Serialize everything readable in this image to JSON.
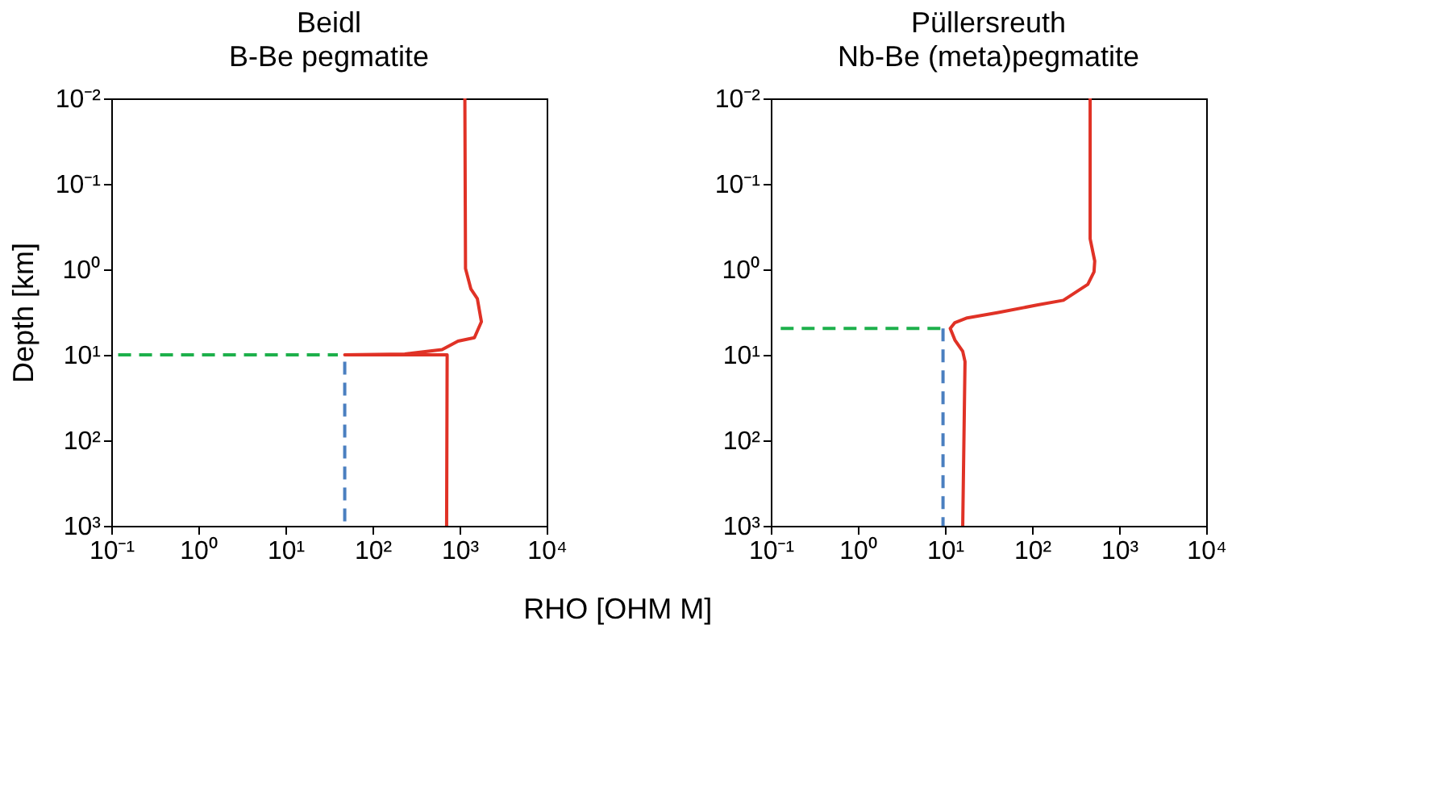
{
  "chart_data": [
    {
      "type": "line",
      "title": "Beidl",
      "subtitle": "B-Be pegmatite",
      "xlabel": "RHO [OHM M]",
      "ylabel": "Depth [km]",
      "log": "xy",
      "grid": false,
      "xlim": [
        0.1,
        10000
      ],
      "xticks": [
        {
          "value": 0.1,
          "label": "10⁻¹"
        },
        {
          "value": 1,
          "label": "10⁰"
        },
        {
          "value": 10,
          "label": "10¹"
        },
        {
          "value": 100,
          "label": "10²"
        },
        {
          "value": 1000,
          "label": "10³"
        },
        {
          "value": 10000,
          "label": "10⁴"
        }
      ],
      "ylim": [
        1000,
        0.01
      ],
      "yticks": [
        {
          "value": 0.01,
          "label": "10⁻²"
        },
        {
          "value": 0.1,
          "label": "10⁻¹"
        },
        {
          "value": 1,
          "label": "10⁰"
        },
        {
          "value": 10,
          "label": "10¹"
        },
        {
          "value": 100,
          "label": "10²"
        },
        {
          "value": 1000,
          "label": "10³"
        }
      ],
      "series": [
        {
          "color": "#e03226",
          "line_style": "solid",
          "x": [
            1150,
            1170,
            1350,
            1600,
            1780,
            1480,
            960,
            630,
            235,
            48,
            720,
            710
          ],
          "values": [
            0.01,
            0.98,
            1.7,
            2.2,
            4.1,
            6.3,
            6.9,
            8.7,
            9.8,
            10,
            10,
            1000
          ]
        },
        {
          "color": "#1db04b",
          "line_style": "dashed",
          "x": [
            0.12,
            40
          ],
          "values": [
            10,
            10
          ]
        },
        {
          "color": "#4a7fc0",
          "line_style": "dashed",
          "x": [
            48,
            48
          ],
          "values": [
            12,
            1000
          ]
        }
      ]
    },
    {
      "type": "line",
      "title": "Püllersreuth",
      "subtitle": "Nb-Be (meta)pegmatite",
      "log": "xy",
      "grid": false,
      "xlim": [
        0.1,
        10000
      ],
      "xticks": [
        {
          "value": 0.1,
          "label": "10⁻¹"
        },
        {
          "value": 1,
          "label": "10⁰"
        },
        {
          "value": 10,
          "label": "10¹"
        },
        {
          "value": 100,
          "label": "10²"
        },
        {
          "value": 1000,
          "label": "10³"
        },
        {
          "value": 10000,
          "label": "10⁴"
        }
      ],
      "ylim": [
        1000,
        0.01
      ],
      "yticks": [
        {
          "value": 0.01,
          "label": "10⁻²"
        },
        {
          "value": 0.1,
          "label": "10⁻¹"
        },
        {
          "value": 1,
          "label": "10⁰"
        },
        {
          "value": 10,
          "label": "10¹"
        },
        {
          "value": 100,
          "label": "10²"
        },
        {
          "value": 1000,
          "label": "10³"
        }
      ],
      "series": [
        {
          "color": "#e03226",
          "line_style": "solid",
          "x": [
            465,
            465,
            525,
            515,
            437,
            229,
            117,
            41,
            18,
            13,
            11.5,
            13,
            16,
            17,
            16
          ],
          "values": [
            0.01,
            0.44,
            0.8,
            1.07,
            1.5,
            2.3,
            2.6,
            3.2,
            3.7,
            4.2,
            4.9,
            6.7,
            9.1,
            12,
            1000
          ]
        },
        {
          "color": "#1db04b",
          "line_style": "dashed",
          "x": [
            0.13,
            9.5
          ],
          "values": [
            4.9,
            4.9
          ]
        },
        {
          "color": "#4a7fc0",
          "line_style": "dashed",
          "x": [
            9.5,
            9.5
          ],
          "values": [
            4.9,
            1000
          ]
        }
      ]
    }
  ]
}
